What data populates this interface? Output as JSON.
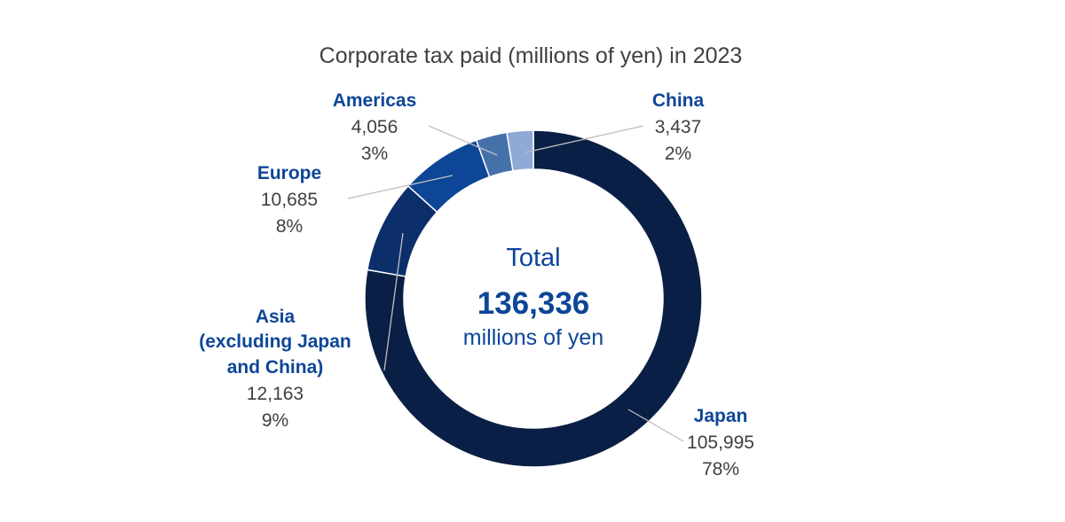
{
  "chart_data": {
    "type": "pie",
    "variant": "donut",
    "title": "Corporate tax paid (millions of yen) in 2023",
    "center": {
      "label": "Total",
      "total": "136,336",
      "unit": "millions of yen"
    },
    "slices": [
      {
        "key": "japan",
        "label_lines": [
          "Japan"
        ],
        "value": 105995,
        "value_text": "105,995",
        "percent_text": "78%",
        "color": "#0a1f45"
      },
      {
        "key": "asia",
        "label_lines": [
          "Asia",
          "(excluding Japan",
          "and China)"
        ],
        "value": 12163,
        "value_text": "12,163",
        "percent_text": "9%",
        "color": "#0c2f6b"
      },
      {
        "key": "europe",
        "label_lines": [
          "Europe"
        ],
        "value": 10685,
        "value_text": "10,685",
        "percent_text": "8%",
        "color": "#0d4697"
      },
      {
        "key": "americas",
        "label_lines": [
          "Americas"
        ],
        "value": 4056,
        "value_text": "4,056",
        "percent_text": "3%",
        "color": "#4571ab"
      },
      {
        "key": "china",
        "label_lines": [
          "China"
        ],
        "value": 3437,
        "value_text": "3,437",
        "percent_text": "2%",
        "color": "#8faad6"
      }
    ],
    "category_color": "#0d4697",
    "value_color": "#404040"
  }
}
